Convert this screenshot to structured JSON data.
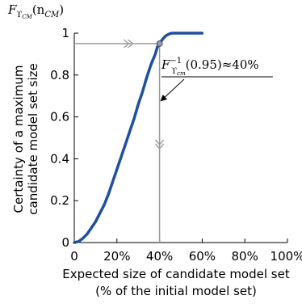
{
  "chart_data": {
    "type": "line",
    "xlabel_line1": "Expected size of candidate model set",
    "xlabel_line2": "(% of the initial model set)",
    "ylabel_line1": "Certainty of a maximum",
    "ylabel_line2": "candidate model set size",
    "ylabel_top_fn": "F",
    "ylabel_top_sub": "ϒ",
    "ylabel_top_subsub": "CM",
    "ylabel_top_arg": "(n",
    "ylabel_top_argsub": "CM",
    "ylabel_top_close": ")",
    "xlim": [
      0,
      100
    ],
    "ylim": [
      0,
      1
    ],
    "xticks": [
      0,
      20,
      40,
      60,
      80,
      100
    ],
    "xtick_labels": [
      "0",
      "20%",
      "40%",
      "60%",
      "80%",
      "100%"
    ],
    "yticks": [
      0,
      0.2,
      0.4,
      0.6,
      0.8,
      1
    ],
    "ytick_labels": [
      "0",
      "0.2",
      "0.4",
      "0.6",
      "0.8",
      "1"
    ],
    "series": [
      {
        "color": "#1f4fa0",
        "x": [
          0,
          2,
          4,
          6,
          8,
          10,
          12,
          14,
          16,
          18,
          20,
          22,
          24,
          26,
          28,
          30,
          32,
          34,
          36,
          38,
          39,
          40,
          41,
          42,
          43,
          44,
          45,
          46,
          47
        ],
        "y": [
          0,
          0.005,
          0.02,
          0.04,
          0.07,
          0.1,
          0.14,
          0.18,
          0.23,
          0.29,
          0.35,
          0.41,
          0.47,
          0.53,
          0.59,
          0.66,
          0.72,
          0.79,
          0.85,
          0.9,
          0.935,
          0.95,
          0.965,
          0.978,
          0.988,
          0.994,
          0.998,
          1.0,
          1.0
        ]
      }
    ],
    "annotation": {
      "fn": "F",
      "sup": "−1",
      "sub": "ϒ",
      "subsub": "cm",
      "arg": "(0.95)≈40%",
      "x_value": 40,
      "y_value": 0.95
    },
    "grid": false
  },
  "colors": {
    "curve": "#1f4fa0",
    "guide": "#999999",
    "axis": "#000000"
  }
}
